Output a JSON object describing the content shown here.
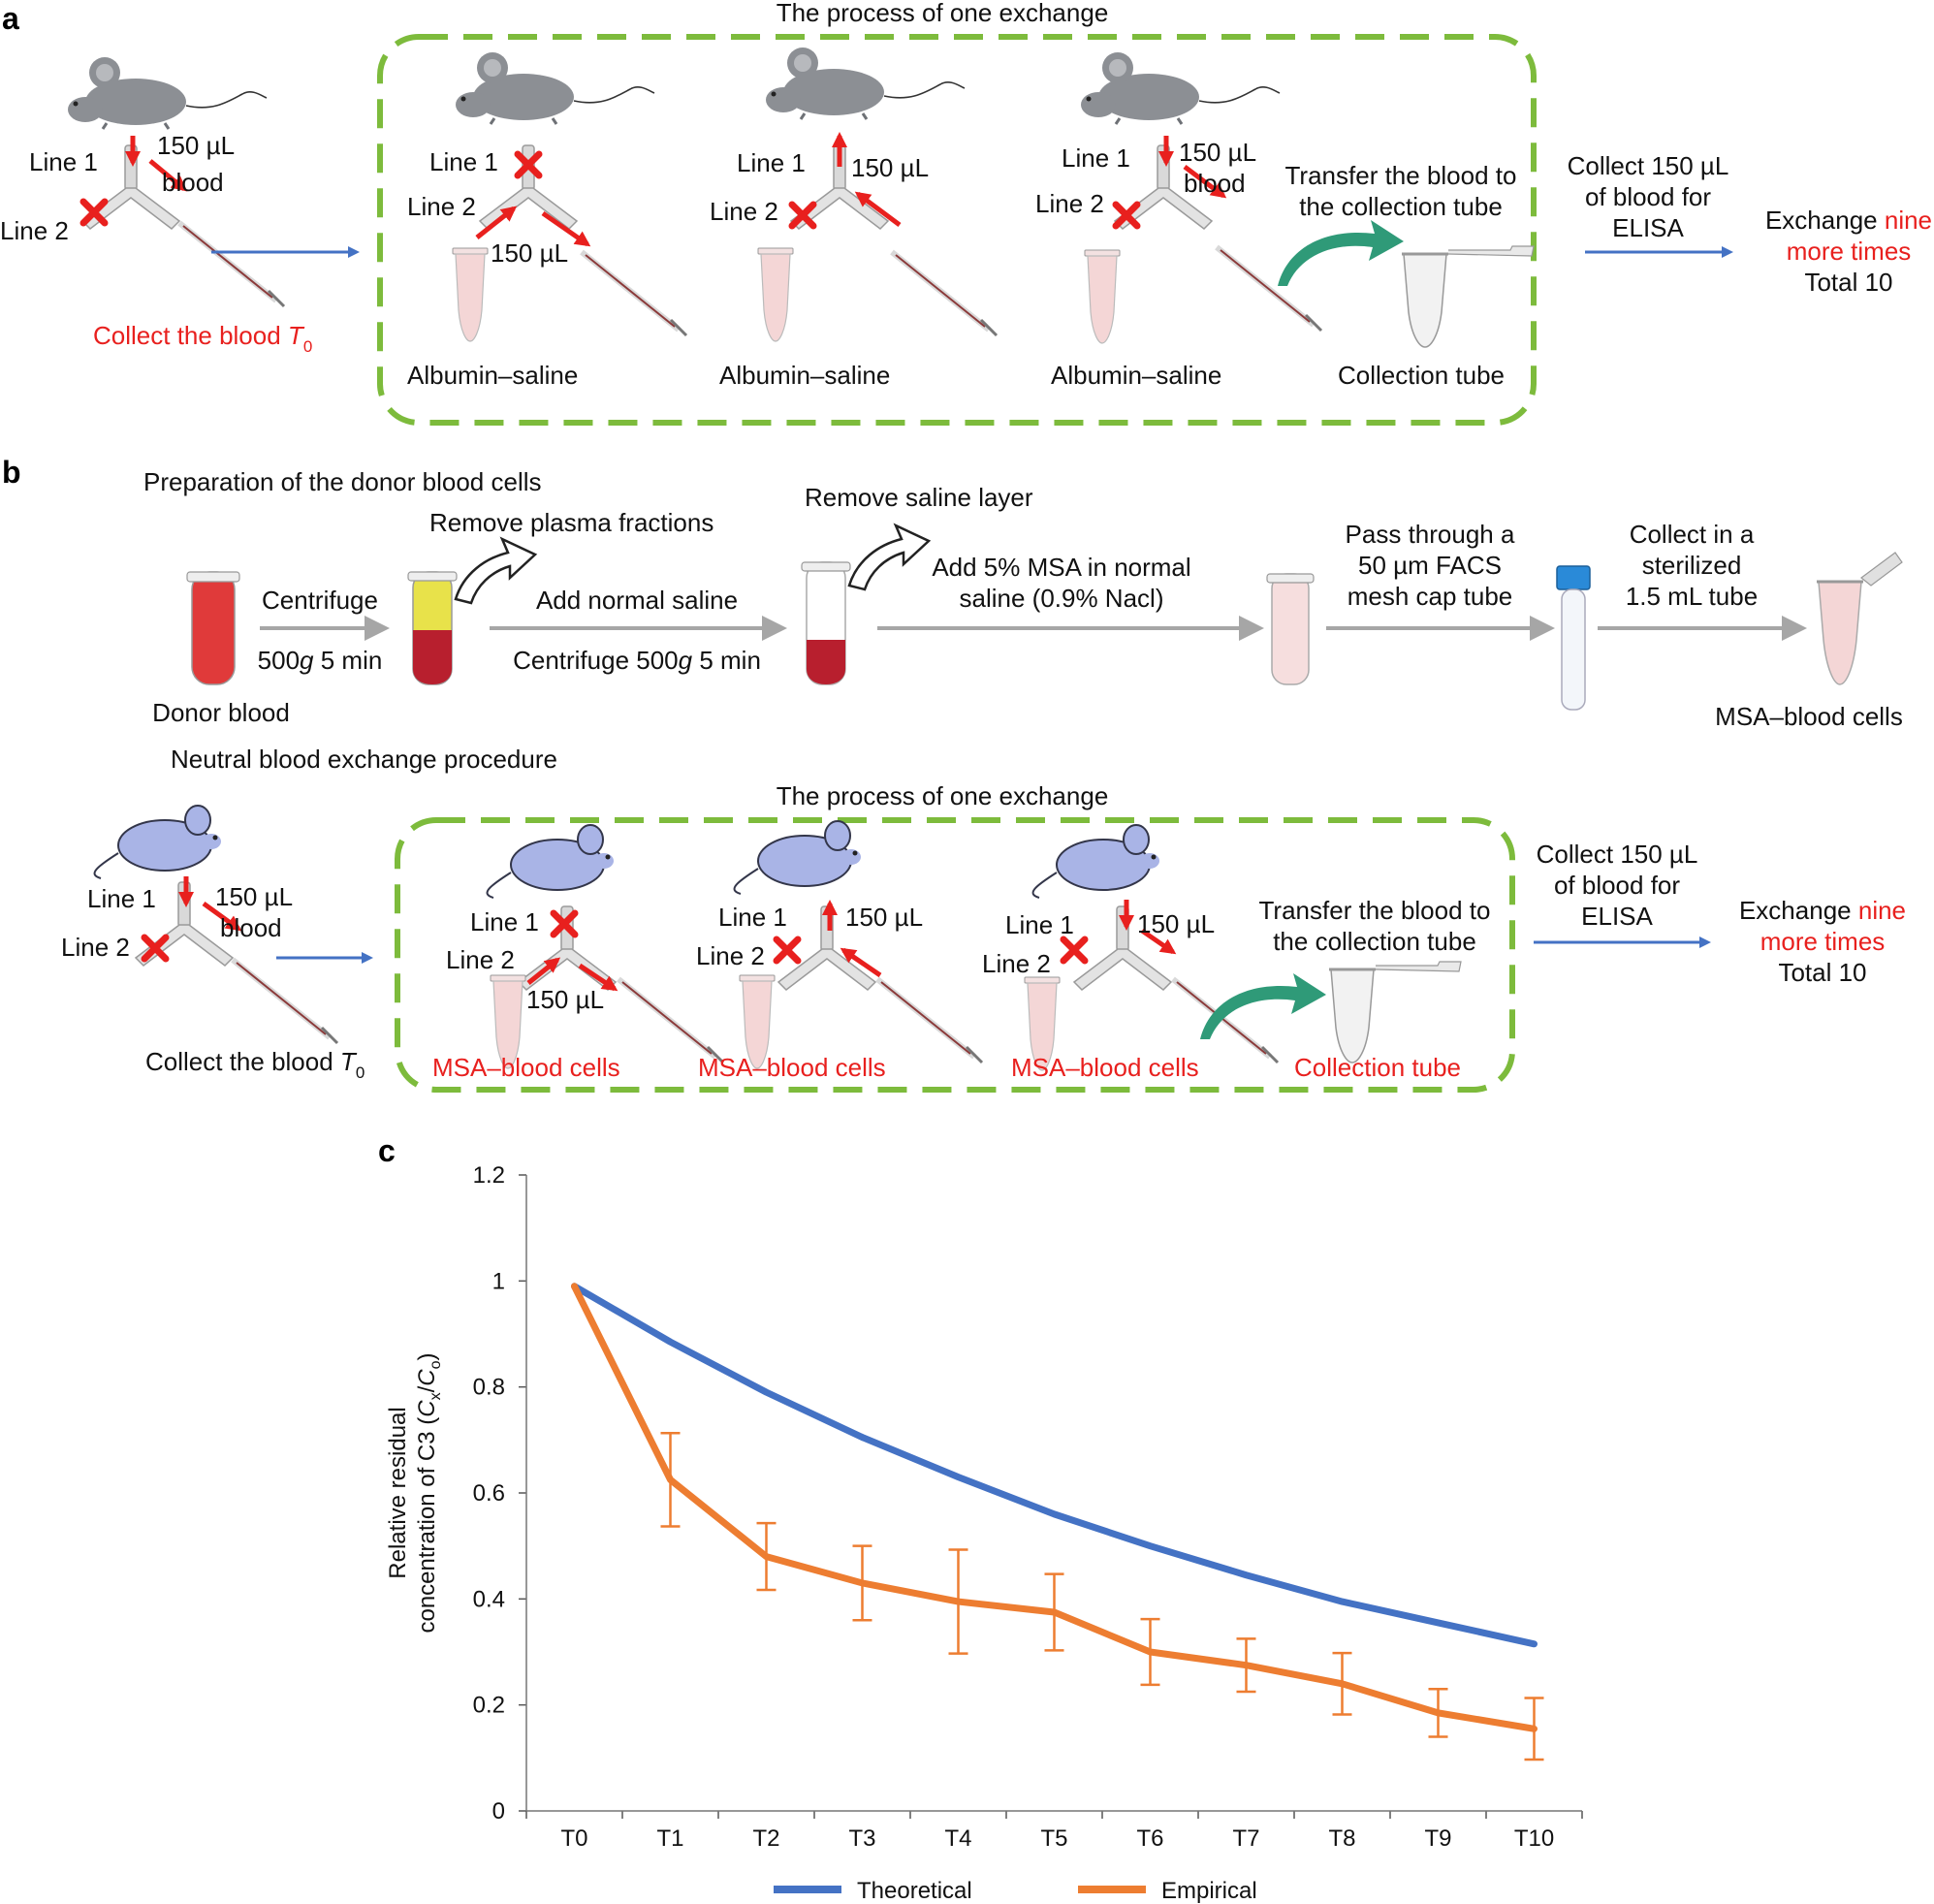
{
  "colors": {
    "red": "#e8201e",
    "blue_arrow": "#4472c4",
    "green_dash": "#7dbb3c",
    "grey_arrow": "#a6a6a6",
    "mouse_grey": "#8c8f94",
    "mouse_lavender": "#a9b4e6",
    "theoretical": "#4472c4",
    "empirical": "#ed7d31"
  },
  "panel_a": {
    "label": "a",
    "exchange_title": "The process of one exchange",
    "line1": "Line 1",
    "line2": "Line 2",
    "vol_150": "150 µL",
    "vol_150_blood_1": "150 µL",
    "vol_150_blood_2": "blood",
    "collect_t0": "Collect the blood",
    "t0_symbol": "T",
    "t0_sub": "0",
    "albumin_saline": "Albumin–saline",
    "transfer_1": "Transfer the blood to",
    "transfer_2": "the collection tube",
    "collection_tube": "Collection tube",
    "collect_elisa_1": "Collect 150 µL",
    "collect_elisa_2": "of blood for",
    "collect_elisa_3": "ELISA",
    "exchange_more_1a": "Exchange",
    "exchange_more_1b": "nine",
    "exchange_more_2": "more times",
    "exchange_more_3": "Total 10"
  },
  "panel_b": {
    "label": "b",
    "prep_title": "Preparation of the donor blood cells",
    "donor_blood": "Donor blood",
    "centrifuge": "Centrifuge",
    "cent_500_a": "500",
    "cent_g": "g",
    "cent_5min": "5 min",
    "remove_plasma": "Remove plasma fractions",
    "add_saline": "Add normal saline",
    "centrifuge_500": "Centrifuge 500",
    "remove_saline": "Remove saline layer",
    "add_msa_1": "Add 5% MSA in normal",
    "add_msa_2": "saline (0.9% Nacl)",
    "pass_1": "Pass through a",
    "pass_2": "50 µm FACS",
    "pass_3": "mesh cap tube",
    "collect_1": "Collect in a",
    "collect_2": "sterilized",
    "collect_3": "1.5 mL tube",
    "msa_blood_cells": "MSA–blood cells",
    "neutral_title": "Neutral blood exchange procedure",
    "exchange_title": "The process of one exchange",
    "collect_t0": "Collect the blood",
    "collection_tube": "Collection tube"
  },
  "panel_c": {
    "label": "c"
  },
  "chart_data": {
    "type": "line",
    "title": "",
    "xlabel": "",
    "ylabel_1": "Relative residual",
    "ylabel_2a": "concentration of C3 (",
    "ylabel_cx": "C",
    "ylabel_x": "x",
    "ylabel_slash": "/",
    "ylabel_co": "C",
    "ylabel_o": "o",
    "ylabel_close": ")",
    "categories": [
      "T0",
      "T1",
      "T2",
      "T3",
      "T4",
      "T5",
      "T6",
      "T7",
      "T8",
      "T9",
      "T10"
    ],
    "ylim": [
      0,
      1.2
    ],
    "yticks": [
      "0",
      "0.2",
      "0.4",
      "0.6",
      "0.8",
      "1",
      "1.2"
    ],
    "ytick_values": [
      0,
      0.2,
      0.4,
      0.6,
      0.8,
      1.0,
      1.2
    ],
    "series": [
      {
        "name": "Theoretical",
        "color": "#4472c4",
        "values": [
          0.99,
          0.885,
          0.79,
          0.705,
          0.63,
          0.56,
          0.5,
          0.445,
          0.395,
          0.355,
          0.315
        ]
      },
      {
        "name": "Empirical",
        "color": "#ed7d31",
        "values": [
          0.99,
          0.625,
          0.48,
          0.43,
          0.395,
          0.375,
          0.3,
          0.275,
          0.24,
          0.185,
          0.155
        ],
        "errors": [
          0,
          0.088,
          0.063,
          0.07,
          0.098,
          0.072,
          0.062,
          0.05,
          0.058,
          0.045,
          0.058
        ]
      }
    ],
    "legend_position": "bottom"
  }
}
